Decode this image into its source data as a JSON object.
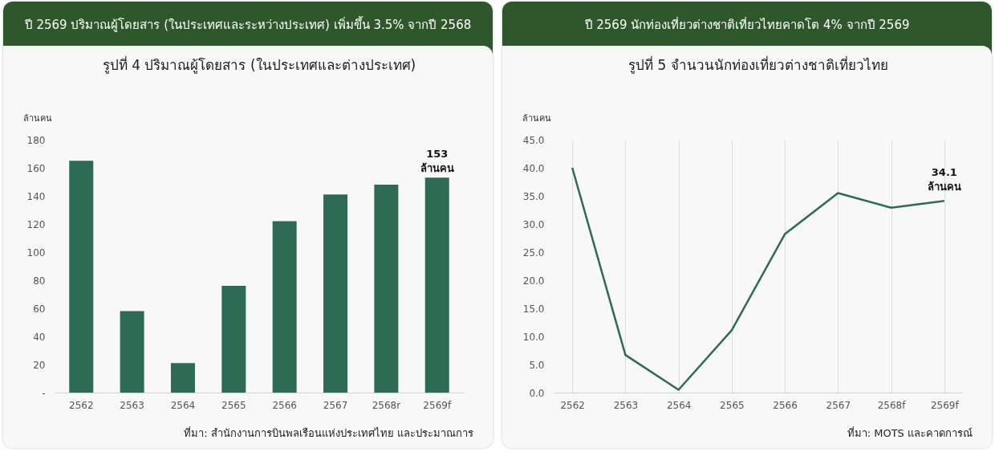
{
  "chart_data": [
    {
      "type": "bar",
      "title": "ปี 2569 ปริมาณผู้โดยสาร (ในประเทศและระหว่างประเทศ) เพิ่มขึ้น 3.5% จากปี 2568",
      "subtitle": "รูปที่  4 ปริมาณผู้โดยสาร (ในประเทศและต่างประเทศ)",
      "ylabel": "ล้านคน",
      "categories": [
        "2562",
        "2563",
        "2564",
        "2565",
        "2566",
        "2567",
        "2568r",
        "2569f"
      ],
      "values": [
        165,
        58,
        21,
        76,
        122,
        141,
        148,
        153
      ],
      "color": "#2e6b55",
      "ylim": [
        0,
        180
      ],
      "yticks": [
        {
          "value": 0,
          "label": "-"
        },
        20,
        40,
        60,
        80,
        100,
        120,
        140,
        160,
        180
      ],
      "annotations": [
        {
          "text": "153\nล้านคน",
          "x": "2569f",
          "y": 153
        },
        "ที่มา: สำนักงานการบินพลเรือนแห่งประเทศไทย และประมาณการ"
      ]
    },
    {
      "type": "line",
      "title": "ปี 2569 นักท่องเที่ยวต่างชาติเที่ยวไทยคาดโต 4% จากปี 2569",
      "subtitle": "รูปที่ 5 จำนวนนักท่องเที่ยวต่างชาติเที่ยวไทย",
      "ylabel": "ล้านคน",
      "categories": [
        "2562",
        "2563",
        "2564",
        "2565",
        "2566",
        "2567",
        "2568f",
        "2569f"
      ],
      "values": [
        40.0,
        6.7,
        0.5,
        11.1,
        28.2,
        35.5,
        32.9,
        34.1
      ],
      "color": "#2e6b55",
      "ylim": [
        0,
        45
      ],
      "grid": "x",
      "line_style": "solid",
      "yticks": [
        {
          "value": 0,
          "label": "0.0"
        },
        {
          "value": 5,
          "label": "5.0"
        },
        {
          "value": 10,
          "label": "10.0"
        },
        {
          "value": 15,
          "label": "15.0"
        },
        {
          "value": 20,
          "label": "20.0"
        },
        {
          "value": 25,
          "label": "25.0"
        },
        {
          "value": 30,
          "label": "30.0"
        },
        {
          "value": 35,
          "label": "35.0"
        },
        {
          "value": 40,
          "label": "40.0"
        },
        {
          "value": 45,
          "label": "45.0"
        }
      ],
      "annotations": [
        {
          "text": "34.1\nล้านคน",
          "x": "2569f",
          "y": 34.1
        },
        "ที่มา: MOTS และคาดการณ์"
      ]
    }
  ]
}
